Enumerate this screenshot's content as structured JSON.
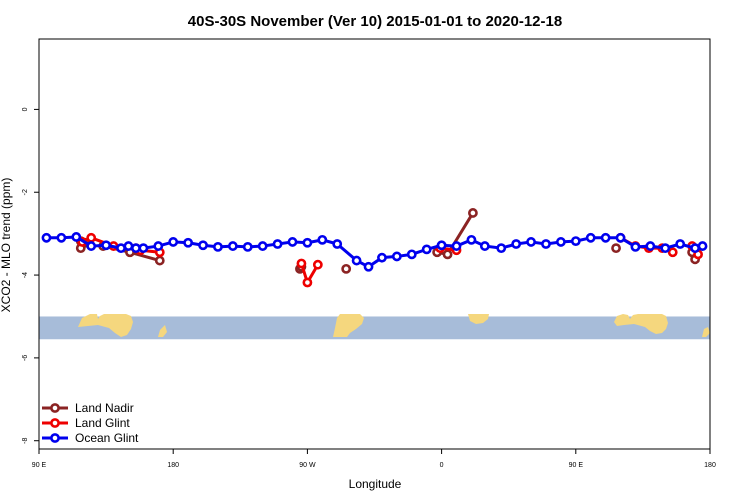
{
  "chart_data": {
    "type": "line",
    "title": "40S-30S November (Ver 10)   2015-01-01 to 2020-12-18",
    "xlabel": "Longitude",
    "ylabel": "XCO2 - MLO trend (ppm)",
    "xlim": [
      90,
      540
    ],
    "ylim": [
      -8.2,
      1.7
    ],
    "x_ticks": [
      {
        "value": 90,
        "label": "90 E"
      },
      {
        "value": 180,
        "label": "180"
      },
      {
        "value": 270,
        "label": "90 W"
      },
      {
        "value": 360,
        "label": "0"
      },
      {
        "value": 450,
        "label": "90 E"
      },
      {
        "value": 540,
        "label": "180"
      }
    ],
    "y_ticks": [
      {
        "value": 0,
        "label": "0"
      },
      {
        "value": -2,
        "label": "-2"
      },
      {
        "value": -4,
        "label": "-4"
      },
      {
        "value": -6,
        "label": "-6"
      },
      {
        "value": -8,
        "label": "-8"
      }
    ],
    "map_band": {
      "y_top": -5.0,
      "y_bottom": -5.55,
      "ocean_color": "#a7bcd9",
      "land_color": "#f5d77e"
    },
    "legend_position": "bottom-left",
    "grid": false,
    "series": [
      {
        "name": "Land Nadir",
        "color": "#8b2323",
        "segments": [
          [
            [
              118,
              -3.18
            ],
            [
              118,
              -3.35
            ],
            [
              121,
              -3.22
            ]
          ],
          [
            [
              133,
              -3.3
            ],
            [
              151,
              -3.45
            ],
            [
              171,
              -3.65
            ]
          ],
          [
            [
              265,
              -3.85
            ],
            [
              266,
              -3.8
            ]
          ],
          [
            [
              296,
              -3.85
            ]
          ],
          [
            [
              357,
              -3.45
            ],
            [
              364,
              -3.5
            ],
            [
              381,
              -2.5
            ]
          ],
          [
            [
              477,
              -3.35
            ]
          ],
          [
            [
              528,
              -3.45
            ]
          ],
          [
            [
              530,
              -3.62
            ]
          ]
        ]
      },
      {
        "name": "Land Glint",
        "color": "#ee0000",
        "segments": [
          [
            [
              119,
              -3.2
            ],
            [
              125,
              -3.1
            ],
            [
              140,
              -3.3
            ],
            [
              155,
              -3.35
            ],
            [
              158,
              -3.4
            ],
            [
              171,
              -3.45
            ]
          ],
          [
            [
              266,
              -3.72
            ],
            [
              270,
              -4.18
            ],
            [
              277,
              -3.75
            ]
          ],
          [
            [
              359,
              -3.35
            ],
            [
              370,
              -3.4
            ]
          ],
          [
            [
              480,
              -3.1
            ],
            [
              490,
              -3.3
            ],
            [
              499,
              -3.35
            ],
            [
              508,
              -3.35
            ],
            [
              515,
              -3.45
            ]
          ],
          [
            [
              528,
              -3.3
            ],
            [
              532,
              -3.5
            ]
          ]
        ]
      },
      {
        "name": "Ocean Glint",
        "color": "#0000ee",
        "segments": [
          [
            [
              95,
              -3.1
            ],
            [
              105,
              -3.1
            ],
            [
              115,
              -3.08
            ],
            [
              125,
              -3.3
            ],
            [
              135,
              -3.28
            ],
            [
              145,
              -3.35
            ],
            [
              150,
              -3.3
            ],
            [
              155,
              -3.35
            ],
            [
              160,
              -3.35
            ],
            [
              170,
              -3.3
            ],
            [
              180,
              -3.2
            ],
            [
              190,
              -3.22
            ],
            [
              200,
              -3.28
            ],
            [
              210,
              -3.32
            ],
            [
              220,
              -3.3
            ],
            [
              230,
              -3.32
            ],
            [
              240,
              -3.3
            ],
            [
              250,
              -3.25
            ],
            [
              260,
              -3.2
            ],
            [
              270,
              -3.22
            ],
            [
              280,
              -3.15
            ],
            [
              290,
              -3.25
            ],
            [
              303,
              -3.65
            ],
            [
              311,
              -3.8
            ],
            [
              320,
              -3.58
            ],
            [
              330,
              -3.55
            ],
            [
              340,
              -3.5
            ],
            [
              350,
              -3.38
            ],
            [
              360,
              -3.28
            ],
            [
              370,
              -3.3
            ],
            [
              380,
              -3.15
            ],
            [
              389,
              -3.3
            ],
            [
              400,
              -3.35
            ],
            [
              410,
              -3.25
            ],
            [
              420,
              -3.2
            ],
            [
              430,
              -3.25
            ],
            [
              440,
              -3.2
            ],
            [
              450,
              -3.18
            ],
            [
              460,
              -3.1
            ],
            [
              470,
              -3.1
            ],
            [
              480,
              -3.1
            ],
            [
              490,
              -3.32
            ],
            [
              500,
              -3.3
            ],
            [
              510,
              -3.35
            ],
            [
              520,
              -3.25
            ],
            [
              530,
              -3.35
            ],
            [
              535,
              -3.3
            ]
          ]
        ]
      }
    ]
  }
}
